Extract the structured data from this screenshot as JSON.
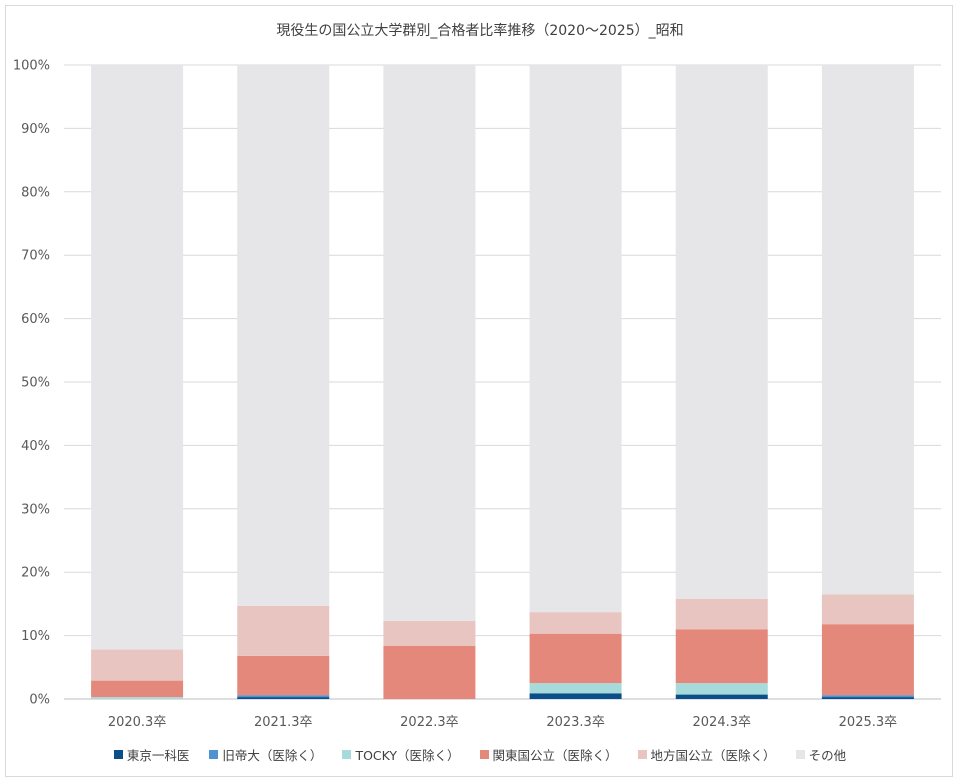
{
  "chart_data": {
    "type": "bar",
    "stacked": true,
    "percent": true,
    "title": "現役生の国公立大学群別_合格者比率推移（2020～2025）_昭和",
    "categories": [
      "2020.3卒",
      "2021.3卒",
      "2022.3卒",
      "2023.3卒",
      "2024.3卒",
      "2025.3卒"
    ],
    "ylim": [
      0,
      100
    ],
    "yticks": [
      "0%",
      "10%",
      "20%",
      "30%",
      "40%",
      "50%",
      "60%",
      "70%",
      "80%",
      "90%",
      "100%"
    ],
    "grid": true,
    "legend_position": "bottom",
    "series": [
      {
        "name": "東京一科医",
        "color": "#0b4f8a",
        "values": [
          0.0,
          0.3,
          0.0,
          0.9,
          0.7,
          0.3
        ]
      },
      {
        "name": "旧帝大（医除く）",
        "color": "#4f92d4",
        "values": [
          0.0,
          0.3,
          0.0,
          0.0,
          0.0,
          0.3
        ]
      },
      {
        "name": "TOCKY（医除く）",
        "color": "#a7dbdb",
        "values": [
          0.3,
          0.0,
          0.0,
          1.6,
          1.8,
          0.0
        ]
      },
      {
        "name": "関東国公立（医除く）",
        "color": "#e5887c",
        "values": [
          2.6,
          6.2,
          8.4,
          7.8,
          8.5,
          11.2
        ]
      },
      {
        "name": "地方国公立（医除く）",
        "color": "#e8c5c0",
        "values": [
          4.9,
          7.9,
          3.9,
          3.4,
          4.8,
          4.7
        ]
      },
      {
        "name": "その他",
        "color": "#e6e6e9",
        "values": [
          92.2,
          85.3,
          87.7,
          86.3,
          84.2,
          83.5
        ]
      }
    ]
  }
}
